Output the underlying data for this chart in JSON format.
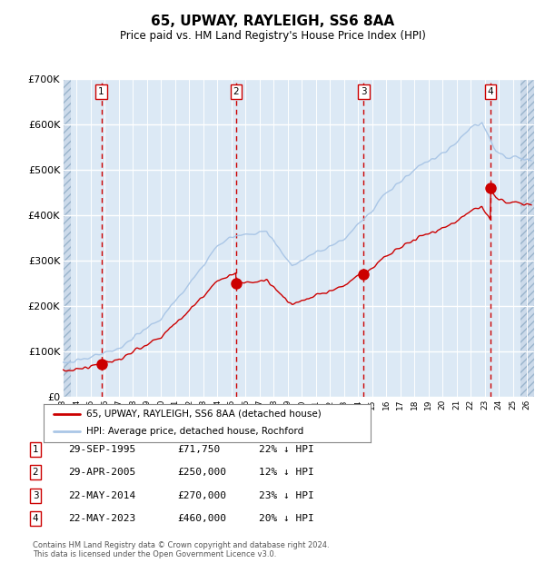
{
  "title": "65, UPWAY, RAYLEIGH, SS6 8AA",
  "subtitle": "Price paid vs. HM Land Registry's House Price Index (HPI)",
  "sales": [
    {
      "num": 1,
      "date_label": "29-SEP-1995",
      "price": 71750,
      "pct": "22%",
      "year": 1995.75
    },
    {
      "num": 2,
      "date_label": "29-APR-2005",
      "price": 250000,
      "pct": "12%",
      "year": 2005.33
    },
    {
      "num": 3,
      "date_label": "22-MAY-2014",
      "price": 270000,
      "pct": "23%",
      "year": 2014.39
    },
    {
      "num": 4,
      "date_label": "22-MAY-2023",
      "price": 460000,
      "pct": "20%",
      "year": 2023.39
    }
  ],
  "legend_line1": "65, UPWAY, RAYLEIGH, SS6 8AA (detached house)",
  "legend_line2": "HPI: Average price, detached house, Rochford",
  "footer1": "Contains HM Land Registry data © Crown copyright and database right 2024.",
  "footer2": "This data is licensed under the Open Government Licence v3.0.",
  "hpi_color": "#aac6e6",
  "sale_color": "#cc0000",
  "bg_color": "#dce9f5",
  "grid_color": "#ffffff",
  "dashed_vline_color": "#cc0000",
  "ylim": [
    0,
    700000
  ],
  "xlim_start": 1993.0,
  "xlim_end": 2026.5,
  "hatch_left_end": 1993.6,
  "hatch_right_start": 2025.5,
  "yticks": [
    0,
    100000,
    200000,
    300000,
    400000,
    500000,
    600000,
    700000
  ],
  "ytick_labels": [
    "£0",
    "£100K",
    "£200K",
    "£300K",
    "£400K",
    "£500K",
    "£600K",
    "£700K"
  ],
  "xtick_years": [
    1993,
    1994,
    1995,
    1996,
    1997,
    1998,
    1999,
    2000,
    2001,
    2002,
    2003,
    2004,
    2005,
    2006,
    2007,
    2008,
    2009,
    2010,
    2011,
    2012,
    2013,
    2014,
    2015,
    2016,
    2017,
    2018,
    2019,
    2020,
    2021,
    2022,
    2023,
    2024,
    2025,
    2026
  ]
}
